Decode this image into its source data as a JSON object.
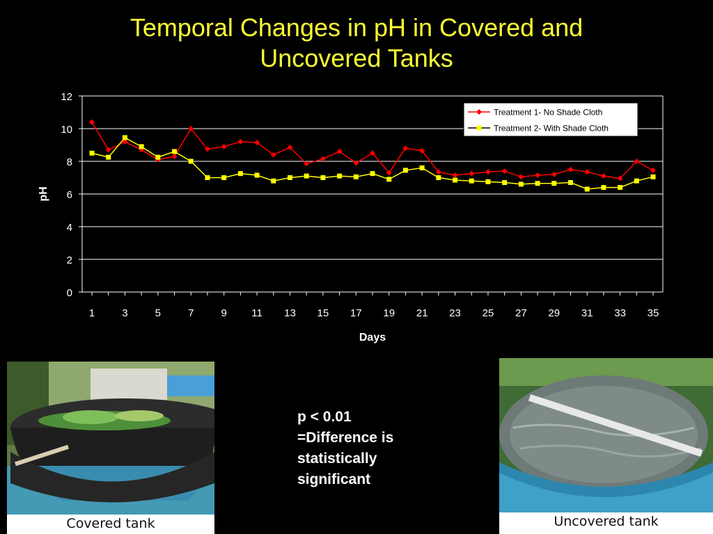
{
  "slide": {
    "title_line1": "Temporal Changes in pH in Covered and",
    "title_line2": "Uncovered Tanks"
  },
  "colors": {
    "background": "#000000",
    "title": "#FFFF33",
    "series1": "#FF0000",
    "series2": "#FFFF00",
    "axis": "#FFFFFF"
  },
  "chart_data": {
    "type": "line",
    "title": "",
    "xlabel": "Days",
    "ylabel": "pH",
    "ylim": [
      0,
      12
    ],
    "yticks": [
      0,
      2,
      4,
      6,
      8,
      10,
      12
    ],
    "x": [
      1,
      2,
      3,
      4,
      5,
      6,
      7,
      8,
      9,
      10,
      11,
      12,
      13,
      14,
      15,
      16,
      17,
      18,
      19,
      20,
      21,
      22,
      23,
      24,
      25,
      26,
      27,
      28,
      29,
      30,
      31,
      32,
      33,
      34,
      35
    ],
    "xtick_labels": [
      "1",
      "3",
      "5",
      "7",
      "9",
      "11",
      "13",
      "15",
      "17",
      "19",
      "21",
      "23",
      "25",
      "27",
      "29",
      "31",
      "33",
      "35"
    ],
    "grid": "horizontal",
    "legend_position": "top-right",
    "series": [
      {
        "name": "Treatment 1- No Shade Cloth",
        "marker": "diamond",
        "color": "#FF0000",
        "values": [
          10.4,
          8.7,
          9.2,
          8.7,
          8.1,
          8.3,
          10.0,
          8.75,
          8.9,
          9.2,
          9.15,
          8.4,
          8.85,
          7.85,
          8.15,
          8.6,
          7.9,
          8.5,
          7.3,
          8.8,
          8.65,
          7.35,
          7.15,
          7.25,
          7.35,
          7.4,
          7.05,
          7.15,
          7.2,
          7.5,
          7.35,
          7.1,
          6.95,
          8.0,
          7.45
        ]
      },
      {
        "name": "Treatment 2- With Shade Cloth",
        "marker": "square",
        "color": "#FFFF00",
        "values": [
          8.5,
          8.25,
          9.45,
          8.9,
          8.25,
          8.6,
          8.0,
          7.0,
          7.0,
          7.25,
          7.15,
          6.8,
          7.0,
          7.1,
          7.0,
          7.1,
          7.05,
          7.25,
          6.9,
          7.45,
          7.6,
          7.0,
          6.85,
          6.8,
          6.75,
          6.7,
          6.6,
          6.65,
          6.65,
          6.7,
          6.3,
          6.4,
          6.4,
          6.8,
          7.05
        ]
      }
    ]
  },
  "note": {
    "line1": "p < 0.01",
    "line2": "=Difference is",
    "line3": "statistically",
    "line4": "significant"
  },
  "photos": {
    "left_caption": "Covered tank",
    "right_caption": "Uncovered tank"
  }
}
